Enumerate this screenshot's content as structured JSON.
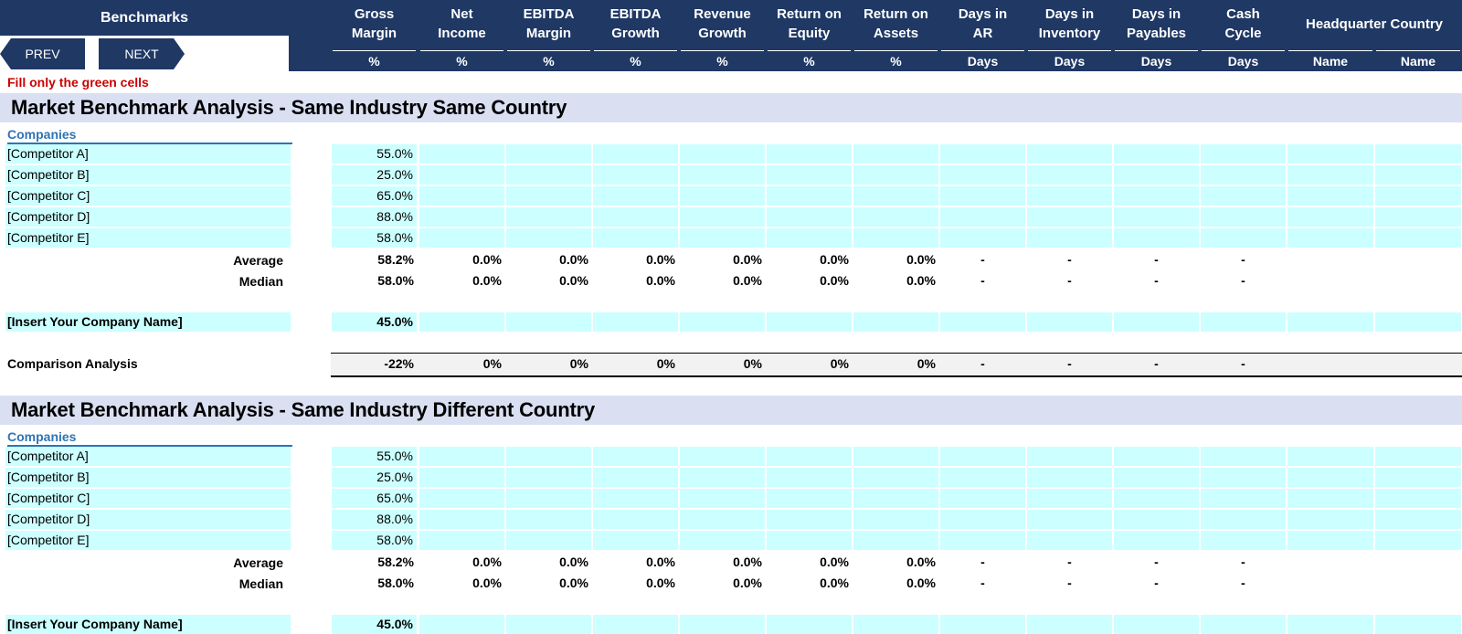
{
  "app": {
    "title": "Benchmarks"
  },
  "nav": {
    "prev": "PREV",
    "next": "NEXT"
  },
  "note": "Fill only the green cells",
  "columns": [
    {
      "label": "Gross\nMargin",
      "unit": "%"
    },
    {
      "label": "Net\nIncome",
      "unit": "%"
    },
    {
      "label": "EBITDA\nMargin",
      "unit": "%"
    },
    {
      "label": "EBITDA\nGrowth",
      "unit": "%"
    },
    {
      "label": "Revenue\nGrowth",
      "unit": "%"
    },
    {
      "label": "Return on\nEquity",
      "unit": "%"
    },
    {
      "label": "Return on\nAssets",
      "unit": "%"
    },
    {
      "label": "Days in\nAR",
      "unit": "Days"
    },
    {
      "label": "Days in\nInventory",
      "unit": "Days"
    },
    {
      "label": "Days in\nPayables",
      "unit": "Days"
    },
    {
      "label": "Cash\nCycle",
      "unit": "Days"
    }
  ],
  "headquarter": {
    "label": "Headquarter Country",
    "units": [
      "Name",
      "Name"
    ]
  },
  "colors": {
    "navy": "#1f3864",
    "green_cell": "#ccffff",
    "section_bg": "#dae0f2",
    "note_red": "#cc0000",
    "companies_blue": "#2e74b5"
  },
  "sections": [
    {
      "title": "Market Benchmark Analysis - Same Industry Same Country",
      "companies_label": "Companies",
      "companies": [
        {
          "name": "[Competitor A]",
          "gross_margin": "55.0%"
        },
        {
          "name": "[Competitor B]",
          "gross_margin": "25.0%"
        },
        {
          "name": "[Competitor C]",
          "gross_margin": "65.0%"
        },
        {
          "name": "[Competitor D]",
          "gross_margin": "88.0%"
        },
        {
          "name": "[Competitor E]",
          "gross_margin": "58.0%"
        }
      ],
      "average": {
        "label": "Average",
        "values": [
          "58.2%",
          "0.0%",
          "0.0%",
          "0.0%",
          "0.0%",
          "0.0%",
          "0.0%",
          "-",
          "-",
          "-",
          "-"
        ]
      },
      "median": {
        "label": "Median",
        "values": [
          "58.0%",
          "0.0%",
          "0.0%",
          "0.0%",
          "0.0%",
          "0.0%",
          "0.0%",
          "-",
          "-",
          "-",
          "-"
        ]
      },
      "your_company": {
        "name": "[Insert Your Company Name]",
        "gross_margin": "45.0%"
      },
      "comparison": {
        "label": "Comparison Analysis",
        "values": [
          "-22%",
          "0%",
          "0%",
          "0%",
          "0%",
          "0%",
          "0%",
          "-",
          "-",
          "-",
          "-"
        ]
      }
    },
    {
      "title": "Market Benchmark Analysis - Same Industry Different Country",
      "companies_label": "Companies",
      "companies": [
        {
          "name": "[Competitor A]",
          "gross_margin": "55.0%"
        },
        {
          "name": "[Competitor B]",
          "gross_margin": "25.0%"
        },
        {
          "name": "[Competitor C]",
          "gross_margin": "65.0%"
        },
        {
          "name": "[Competitor D]",
          "gross_margin": "88.0%"
        },
        {
          "name": "[Competitor E]",
          "gross_margin": "58.0%"
        }
      ],
      "average": {
        "label": "Average",
        "values": [
          "58.2%",
          "0.0%",
          "0.0%",
          "0.0%",
          "0.0%",
          "0.0%",
          "0.0%",
          "-",
          "-",
          "-",
          "-"
        ]
      },
      "median": {
        "label": "Median",
        "values": [
          "58.0%",
          "0.0%",
          "0.0%",
          "0.0%",
          "0.0%",
          "0.0%",
          "0.0%",
          "-",
          "-",
          "-",
          "-"
        ]
      },
      "your_company": {
        "name": "[Insert Your Company Name]",
        "gross_margin": "45.0%"
      }
    }
  ]
}
